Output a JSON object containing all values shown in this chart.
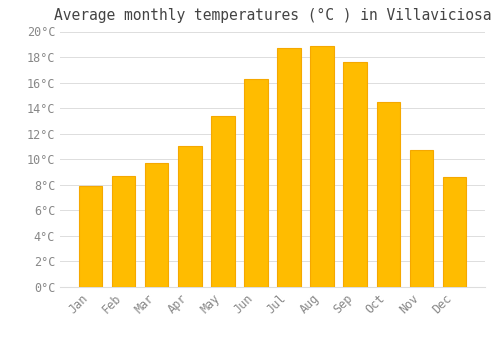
{
  "title": "Average monthly temperatures (°C ) in Villaviciosa",
  "months": [
    "Jan",
    "Feb",
    "Mar",
    "Apr",
    "May",
    "Jun",
    "Jul",
    "Aug",
    "Sep",
    "Oct",
    "Nov",
    "Dec"
  ],
  "values": [
    7.9,
    8.7,
    9.7,
    11.0,
    13.4,
    16.3,
    18.7,
    18.9,
    17.6,
    14.5,
    10.7,
    8.6
  ],
  "bar_color": "#FFBC00",
  "bar_edge_color": "#F5A800",
  "background_color": "#FFFFFF",
  "plot_bg_color": "#FFFFFF",
  "grid_color": "#DDDDDD",
  "text_color": "#888888",
  "title_color": "#444444",
  "ylim": [
    0,
    20
  ],
  "ytick_step": 2,
  "title_fontsize": 10.5,
  "tick_fontsize": 8.5,
  "bar_width": 0.7
}
